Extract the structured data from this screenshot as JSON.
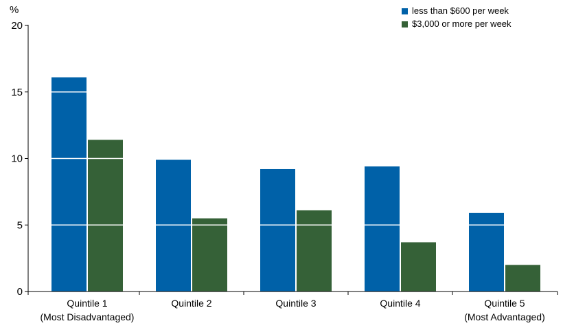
{
  "chart_data": {
    "type": "bar",
    "title": "",
    "ylabel": "%",
    "xlabel": "",
    "ylim": [
      0,
      20
    ],
    "yticks": [
      0,
      5,
      10,
      15,
      20
    ],
    "grid": true,
    "legend_position": "top-right",
    "categories": [
      {
        "line1": "Quintile 1",
        "line2": "(Most Disadvantaged)"
      },
      {
        "line1": "Quintile 2",
        "line2": ""
      },
      {
        "line1": "Quintile 3",
        "line2": ""
      },
      {
        "line1": "Quintile 4",
        "line2": ""
      },
      {
        "line1": "Quintile 5",
        "line2": "(Most Advantaged)"
      }
    ],
    "series": [
      {
        "name": "less than $600 per week",
        "color": "#0061a8",
        "values": [
          16.1,
          9.9,
          9.2,
          9.4,
          5.9
        ]
      },
      {
        "name": "$3,000 or more per week",
        "color": "#356137",
        "values": [
          11.4,
          5.5,
          6.1,
          3.7,
          2.0
        ]
      }
    ]
  }
}
